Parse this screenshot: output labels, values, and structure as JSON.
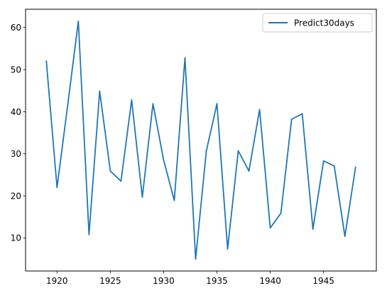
{
  "chart_data": {
    "type": "line",
    "title": "",
    "xlabel": "",
    "ylabel": "",
    "xlim": [
      1917.05,
      1949.95
    ],
    "ylim": [
      2.15,
      64.35
    ],
    "x_ticks": [
      1920,
      1925,
      1930,
      1935,
      1940,
      1945
    ],
    "x_tick_labels": [
      "1920",
      "1925",
      "1930",
      "1935",
      "1940",
      "1945"
    ],
    "y_ticks": [
      10,
      20,
      30,
      40,
      50,
      60
    ],
    "y_tick_labels": [
      "10",
      "20",
      "30",
      "40",
      "50",
      "60"
    ],
    "grid": false,
    "legend_position": "top-right",
    "series": [
      {
        "name": "Predict30days",
        "color": "#1f77b4",
        "x": [
          1919,
          1920,
          1921,
          1922,
          1923,
          1924,
          1925,
          1926,
          1927,
          1928,
          1929,
          1930,
          1931,
          1932,
          1933,
          1934,
          1935,
          1936,
          1937,
          1938,
          1939,
          1940,
          1941,
          1942,
          1943,
          1944,
          1945,
          1946,
          1947,
          1948
        ],
        "values": [
          52.0,
          22.0,
          41.5,
          61.5,
          10.8,
          44.9,
          25.9,
          23.5,
          42.8,
          19.7,
          41.9,
          28.5,
          18.9,
          52.8,
          5.0,
          30.6,
          41.9,
          7.4,
          30.7,
          25.9,
          40.5,
          12.4,
          15.9,
          38.2,
          39.5,
          12.1,
          28.3,
          27.1,
          10.4,
          26.8
        ]
      }
    ]
  }
}
